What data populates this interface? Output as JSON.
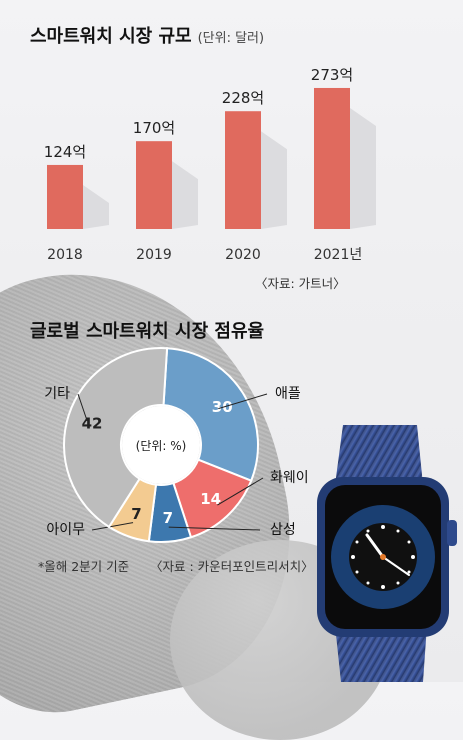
{
  "chart_data": [
    {
      "type": "bar",
      "title": "스마트워치 시장 규모",
      "unit": "(단위: 달러)",
      "categories": [
        "2018",
        "2019",
        "2020",
        "2021년"
      ],
      "values": [
        124,
        170,
        228,
        273
      ],
      "data_labels": [
        "124억",
        "170억",
        "228억",
        "273억"
      ],
      "ylim": [
        0,
        300
      ],
      "source": "〈자료: 가트너〉",
      "colors": {
        "bar": "#e06a5e",
        "shadow": "#dcdcdf"
      }
    },
    {
      "type": "pie",
      "title": "글로벌 스마트워치 시장 점유율",
      "center_label": "(단위: %)",
      "slices": [
        {
          "label": "애플",
          "value": 30,
          "color": "#6b9ec9"
        },
        {
          "label": "화웨이",
          "value": 14,
          "color": "#ee6e6c"
        },
        {
          "label": "삼성",
          "value": 7,
          "color": "#3d78ae"
        },
        {
          "label": "아이무",
          "value": 7,
          "color": "#f3cb91"
        },
        {
          "label": "기타",
          "value": 42,
          "color": "#bdbdbd"
        }
      ],
      "source": "〈자료 : 카운터포인트리서치〉",
      "note": "*올해 2분기 기준"
    }
  ]
}
